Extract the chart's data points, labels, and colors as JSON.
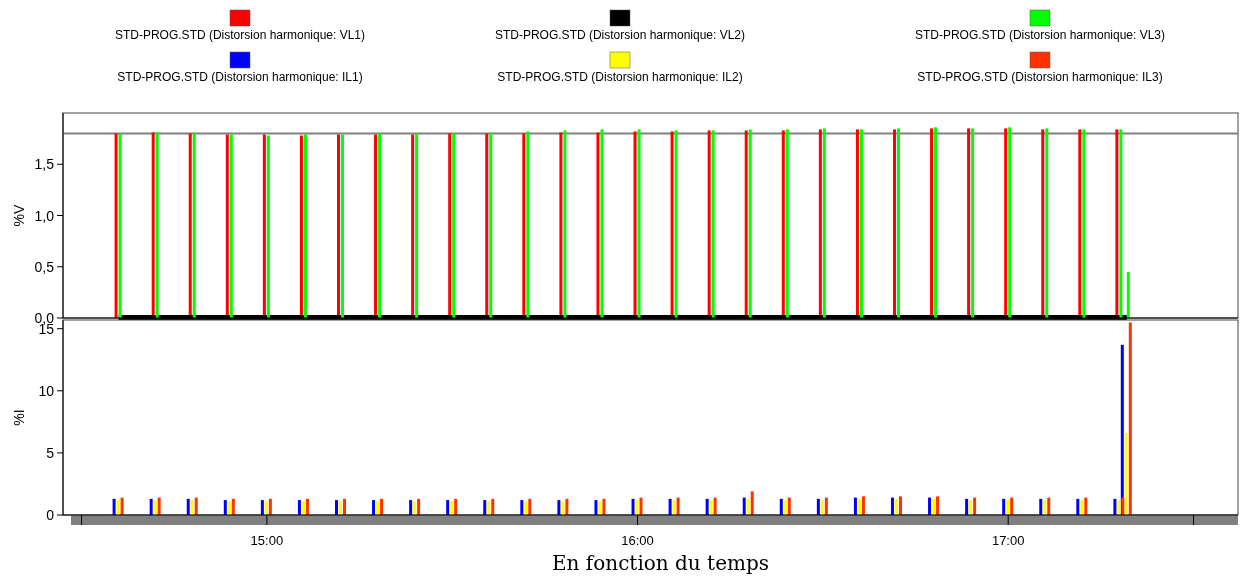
{
  "chart_data": [
    {
      "type": "bar",
      "ylabel": "%V",
      "legend": "top",
      "tick_labels": "y",
      "xlim": [
        14.45,
        17.62
      ],
      "ylim": [
        0,
        2
      ],
      "yticks": [
        {
          "value": 0,
          "label": "0,0"
        },
        {
          "value": 0.5,
          "label": "0,5"
        },
        {
          "value": 1,
          "label": "1,0"
        },
        {
          "value": 1.5,
          "label": "1,5"
        }
      ],
      "x": [
        14.6,
        14.7,
        14.8,
        14.9,
        15.0,
        15.1,
        15.2,
        15.3,
        15.4,
        15.5,
        15.6,
        15.7,
        15.8,
        15.9,
        16.0,
        16.1,
        16.2,
        16.3,
        16.4,
        16.5,
        16.6,
        16.7,
        16.8,
        16.9,
        17.0,
        17.1,
        17.2,
        17.3,
        17.32
      ],
      "ref_lines": [
        {
          "axis": "y",
          "value": 1.8,
          "color": "#808080"
        }
      ],
      "series": [
        {
          "name": "STD-PROG.STD (Distorsion harmonique: VL1)",
          "color": "#ff0000",
          "values": [
            1.8,
            1.81,
            1.8,
            1.79,
            1.79,
            1.78,
            1.79,
            1.79,
            1.79,
            1.8,
            1.8,
            1.8,
            1.81,
            1.81,
            1.82,
            1.82,
            1.83,
            1.83,
            1.83,
            1.84,
            1.84,
            1.84,
            1.85,
            1.85,
            1.85,
            1.84,
            1.84,
            1.84,
            null
          ]
        },
        {
          "name": "STD-PROG.STD (Distorsion harmonique: VL2)",
          "color": "#000000",
          "type": "line",
          "values": [
            0,
            0,
            0,
            0,
            0,
            0,
            0,
            0,
            0,
            0,
            0,
            0,
            0,
            0,
            0,
            0,
            0,
            0,
            0,
            0,
            0,
            0,
            0,
            0,
            0,
            0,
            0,
            0,
            0
          ]
        },
        {
          "name": "STD-PROG.STD (Distorsion harmonique: VL3)",
          "color": "#00ff00",
          "values": [
            1.8,
            1.81,
            1.81,
            1.79,
            1.78,
            1.79,
            1.79,
            1.8,
            1.8,
            1.8,
            1.81,
            1.82,
            1.83,
            1.84,
            1.84,
            1.83,
            1.83,
            1.84,
            1.84,
            1.85,
            1.84,
            1.85,
            1.86,
            1.85,
            1.86,
            1.85,
            1.84,
            1.84,
            0.45
          ]
        }
      ]
    },
    {
      "type": "bar",
      "ylabel": "%I",
      "xlabel": "En fonction du temps",
      "legend": "top",
      "xlim": [
        14.45,
        17.62
      ],
      "xticks": [
        {
          "value": 14.5,
          "label": null
        },
        {
          "value": 15,
          "label": "15:00"
        },
        {
          "value": 16,
          "label": "16:00"
        },
        {
          "value": 17,
          "label": "17:00"
        },
        {
          "value": 17.5,
          "label": null
        }
      ],
      "ylim": [
        0,
        15.7
      ],
      "yticks": [
        0,
        5,
        10,
        15
      ],
      "x": [
        14.6,
        14.7,
        14.8,
        14.9,
        15.0,
        15.1,
        15.2,
        15.3,
        15.4,
        15.5,
        15.6,
        15.7,
        15.8,
        15.9,
        16.0,
        16.1,
        16.2,
        16.3,
        16.4,
        16.5,
        16.6,
        16.7,
        16.8,
        16.9,
        17.0,
        17.1,
        17.2,
        17.3,
        17.32
      ],
      "series": [
        {
          "name": "STD-PROG.STD (Distorsion harmonique: IL1)",
          "color": "#0000ff",
          "values": [
            1.3,
            1.3,
            1.3,
            1.2,
            1.2,
            1.2,
            1.2,
            1.2,
            1.2,
            1.2,
            1.2,
            1.2,
            1.2,
            1.2,
            1.3,
            1.3,
            1.3,
            1.4,
            1.3,
            1.3,
            1.4,
            1.4,
            1.4,
            1.3,
            1.3,
            1.3,
            1.3,
            1.3,
            13.7
          ]
        },
        {
          "name": "STD-PROG.STD (Distorsion harmonique: IL2)",
          "color": "#ffff00",
          "values": [
            1.2,
            1.2,
            1.2,
            1.1,
            1.1,
            1.1,
            1.1,
            1.1,
            1.1,
            1.1,
            1.1,
            1.1,
            1.1,
            1.1,
            1.2,
            1.2,
            1.2,
            1.3,
            1.2,
            1.2,
            1.3,
            1.3,
            1.3,
            1.2,
            1.2,
            1.2,
            1.2,
            1.2,
            6.6
          ]
        },
        {
          "name": "STD-PROG.STD (Distorsion harmonique: IL3)",
          "color": "#ff3300",
          "values": [
            1.4,
            1.4,
            1.4,
            1.3,
            1.3,
            1.3,
            1.3,
            1.3,
            1.3,
            1.3,
            1.3,
            1.3,
            1.3,
            1.3,
            1.4,
            1.4,
            1.4,
            1.9,
            1.4,
            1.4,
            1.5,
            1.5,
            1.5,
            1.4,
            1.4,
            1.4,
            1.4,
            1.4,
            15.5
          ]
        }
      ]
    }
  ]
}
